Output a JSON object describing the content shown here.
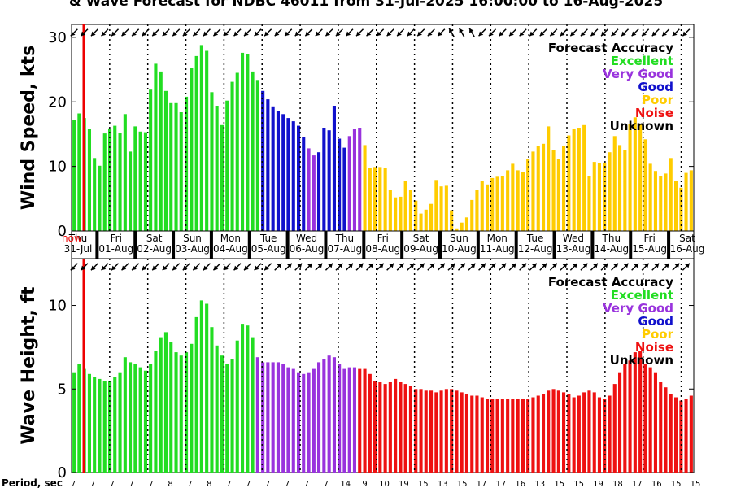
{
  "title": "& Wave Forecast for NDBC 46011 from 31-Jul-2025 16:00:00 to 16-Aug-2025",
  "now_label": "now",
  "period_label": "Period, sec",
  "legend": {
    "title": "Forecast Accuracy",
    "items": [
      {
        "label": "Excellent",
        "color": "#22dd22"
      },
      {
        "label": "Very Good",
        "color": "#9933dd"
      },
      {
        "label": "Good",
        "color": "#1111cc"
      },
      {
        "label": "Poor",
        "color": "#ffcc00"
      },
      {
        "label": "Noise",
        "color": "#ee1111"
      },
      {
        "label": "Unknown",
        "color": "#000000"
      }
    ]
  },
  "colors": {
    "excellent": "#22dd22",
    "very_good": "#9933dd",
    "good": "#1111cc",
    "poor": "#ffcc00",
    "noise": "#ee1111",
    "now_line": "#ee0000",
    "grid": "#000000"
  },
  "chart_data": [
    {
      "type": "bar",
      "ylabel": "Wind Speed, kts",
      "ylim": [
        0,
        32
      ],
      "yticks": [
        0,
        10,
        20,
        30
      ],
      "x_start": "2025-07-31 16:00",
      "x_step_hours": 3,
      "day_labels": [
        {
          "day": "Thu",
          "date": "31-Jul"
        },
        {
          "day": "Fri",
          "date": "01-Aug"
        },
        {
          "day": "Sat",
          "date": "02-Aug"
        },
        {
          "day": "Sun",
          "date": "03-Aug"
        },
        {
          "day": "Mon",
          "date": "04-Aug"
        },
        {
          "day": "Tue",
          "date": "05-Aug"
        },
        {
          "day": "Wed",
          "date": "06-Aug"
        },
        {
          "day": "Thu",
          "date": "07-Aug"
        },
        {
          "day": "Fri",
          "date": "08-Aug"
        },
        {
          "day": "Sat",
          "date": "09-Aug"
        },
        {
          "day": "Sun",
          "date": "10-Aug"
        },
        {
          "day": "Mon",
          "date": "11-Aug"
        },
        {
          "day": "Tue",
          "date": "12-Aug"
        },
        {
          "day": "Wed",
          "date": "13-Aug"
        },
        {
          "day": "Thu",
          "date": "14-Aug"
        },
        {
          "day": "Fri",
          "date": "15-Aug"
        },
        {
          "day": "Sat",
          "date": "16-Aug"
        }
      ],
      "values": [
        17.2,
        18.2,
        17.5,
        15.8,
        11.3,
        10.1,
        15.1,
        15.9,
        16.3,
        15.2,
        18.1,
        12.3,
        16.2,
        15.4,
        15.3,
        21.9,
        25.9,
        24.7,
        21.7,
        19.8,
        19.8,
        18.4,
        20.8,
        25.3,
        27.1,
        28.8,
        27.9,
        21.5,
        19.4,
        16.4,
        20.2,
        23.1,
        24.5,
        27.6,
        27.4,
        24.7,
        23.4,
        21.7,
        20.4,
        19.3,
        18.6,
        18.1,
        17.5,
        17.0,
        16.3,
        14.5,
        12.8,
        11.7,
        12.2,
        16.0,
        15.6,
        19.4,
        14.3,
        12.9,
        14.7,
        15.8,
        16.0,
        13.3,
        9.8,
        9.9,
        9.9,
        9.8,
        6.3,
        5.2,
        5.3,
        7.7,
        6.4,
        4.7,
        2.7,
        3.3,
        4.2,
        7.9,
        6.9,
        7.0,
        3.2,
        0.4,
        1.3,
        2.1,
        4.8,
        6.3,
        7.8,
        7.2,
        8.2,
        8.4,
        8.5,
        9.4,
        10.4,
        9.4,
        9.1,
        11.2,
        12.3,
        13.2,
        13.5,
        16.2,
        12.5,
        11.1,
        13.2,
        14.8,
        15.8,
        16.0,
        16.4,
        8.5,
        10.7,
        10.5,
        10.6,
        12.2,
        14.7,
        13.3,
        12.6,
        16.5,
        17.6,
        16.6,
        14.2,
        10.4,
        9.3,
        8.5,
        8.9,
        11.3,
        7.7,
        6.7,
        9.0,
        9.4
      ],
      "accuracy": "excellent x30, good-transition x23, very-good/poor x11, poor remainder",
      "direction_icons": "wind-arrow"
    },
    {
      "type": "bar",
      "ylabel": "Wave Height, ft",
      "ylim": [
        0,
        12.8
      ],
      "yticks": [
        0,
        5,
        10
      ],
      "values": [
        6.0,
        6.5,
        6.2,
        5.9,
        5.7,
        5.6,
        5.5,
        5.5,
        5.7,
        6.0,
        6.9,
        6.6,
        6.5,
        6.3,
        6.1,
        6.5,
        7.3,
        8.1,
        8.4,
        7.8,
        7.2,
        7.0,
        7.2,
        7.7,
        9.3,
        10.3,
        10.1,
        8.7,
        7.6,
        7.0,
        6.5,
        6.8,
        7.9,
        8.9,
        8.8,
        8.1,
        6.9,
        6.6,
        6.6,
        6.6,
        6.6,
        6.5,
        6.3,
        6.2,
        6.0,
        5.9,
        6.0,
        6.2,
        6.6,
        6.8,
        7.0,
        6.9,
        6.5,
        6.2,
        6.3,
        6.3,
        6.2,
        6.2,
        5.9,
        5.5,
        5.4,
        5.3,
        5.4,
        5.6,
        5.4,
        5.3,
        5.2,
        5.0,
        5.0,
        4.9,
        4.9,
        4.8,
        4.9,
        5.0,
        5.0,
        4.9,
        4.8,
        4.7,
        4.6,
        4.6,
        4.5,
        4.4,
        4.4,
        4.4,
        4.4,
        4.4,
        4.4,
        4.4,
        4.4,
        4.4,
        4.5,
        4.6,
        4.7,
        4.9,
        5.0,
        4.9,
        4.8,
        4.7,
        4.5,
        4.6,
        4.8,
        4.9,
        4.8,
        4.5,
        4.4,
        4.6,
        5.3,
        6.0,
        6.5,
        6.7,
        7.2,
        7.3,
        6.5,
        6.3,
        6.0,
        5.4,
        5.1,
        4.7,
        4.5,
        4.3,
        4.4,
        4.6
      ],
      "direction_icons": "wave-arrow"
    }
  ],
  "periods": [
    "7",
    "7",
    "7",
    "7",
    "7",
    "8",
    "7",
    "8",
    "7",
    "7",
    "7",
    "7",
    "7",
    "7",
    "14",
    "9",
    "10",
    "19",
    "15",
    "13",
    "15",
    "17",
    "17",
    "16",
    "13",
    "15",
    "15",
    "19",
    "18",
    "17",
    "16",
    "15",
    "15"
  ]
}
